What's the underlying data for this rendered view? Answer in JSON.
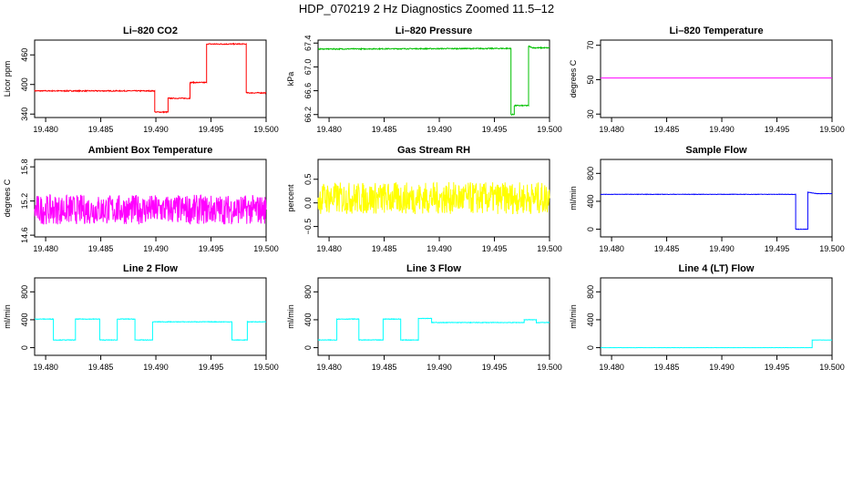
{
  "figure": {
    "title": "HDP_070219  2 Hz Diagnostics Zoomed 11.5–12"
  },
  "chart_data": [
    {
      "type": "line",
      "title": "Li–820 CO2",
      "ylabel": "Licor ppm",
      "xlim": [
        19.479,
        19.5
      ],
      "xticks": [
        19.48,
        19.485,
        19.49,
        19.495,
        19.5
      ],
      "xtick_labels": [
        "19.480",
        "19.485",
        "19.490",
        "19.495",
        "19.500"
      ],
      "ylim": [
        333,
        490
      ],
      "yticks": [
        340,
        400,
        460
      ],
      "ytick_labels": [
        "340",
        "400",
        "460"
      ],
      "color": "#ff0000",
      "noise": 1,
      "series": [
        {
          "x": [
            19.479,
            19.4899,
            19.4899,
            19.4911,
            19.4911,
            19.4931,
            19.4931,
            19.4946,
            19.4946,
            19.4982,
            19.4982,
            19.5
          ],
          "y": [
            387,
            387,
            344,
            344,
            372,
            372,
            404,
            404,
            482,
            482,
            383,
            383
          ]
        }
      ]
    },
    {
      "type": "line",
      "title": "Li–820 Pressure",
      "ylabel": "kPa",
      "xlim": [
        19.479,
        19.5
      ],
      "xticks": [
        19.48,
        19.485,
        19.49,
        19.495,
        19.5
      ],
      "xtick_labels": [
        "19.480",
        "19.485",
        "19.490",
        "19.495",
        "19.500"
      ],
      "ylim": [
        66.15,
        67.45
      ],
      "yticks": [
        66.2,
        66.6,
        67.0,
        67.4
      ],
      "ytick_labels": [
        "66.2",
        "66.6",
        "67.0",
        "67.4"
      ],
      "color": "#00c000",
      "noise": 0.008,
      "series": [
        {
          "x": [
            19.479,
            19.4965,
            19.4965,
            19.4968,
            19.4968,
            19.4981,
            19.4981,
            19.4985,
            19.5
          ],
          "y": [
            67.3,
            67.31,
            66.2,
            66.2,
            66.35,
            66.35,
            67.35,
            67.32,
            67.32
          ]
        }
      ]
    },
    {
      "type": "line",
      "title": "Li–820 Temperature",
      "ylabel": "degrees C",
      "xlim": [
        19.479,
        19.5
      ],
      "xticks": [
        19.48,
        19.485,
        19.49,
        19.495,
        19.5
      ],
      "xtick_labels": [
        "19.480",
        "19.485",
        "19.490",
        "19.495",
        "19.500"
      ],
      "ylim": [
        28,
        73
      ],
      "yticks": [
        30,
        50,
        70
      ],
      "ytick_labels": [
        "30",
        "50",
        "70"
      ],
      "color": "#ff00ff",
      "noise": 0,
      "series": [
        {
          "x": [
            19.479,
            19.5
          ],
          "y": [
            51,
            51
          ]
        }
      ]
    },
    {
      "type": "line",
      "title": "Ambient Box Temperature",
      "ylabel": "degrees C",
      "xlim": [
        19.479,
        19.5
      ],
      "xticks": [
        19.48,
        19.485,
        19.49,
        19.495,
        19.5
      ],
      "xtick_labels": [
        "19.480",
        "19.485",
        "19.490",
        "19.495",
        "19.500"
      ],
      "ylim": [
        14.57,
        15.93
      ],
      "yticks": [
        14.6,
        15.2,
        15.8
      ],
      "ytick_labels": [
        "14.6",
        "15.2",
        "15.8"
      ],
      "color": "#ff00ff",
      "noise": 0.26,
      "series": [
        {
          "x": [
            19.479,
            19.5
          ],
          "y": [
            15.05,
            15.05
          ]
        }
      ]
    },
    {
      "type": "line",
      "title": "Gas Stream RH",
      "ylabel": "percent",
      "xlim": [
        19.479,
        19.5
      ],
      "xticks": [
        19.48,
        19.485,
        19.49,
        19.495,
        19.5
      ],
      "xtick_labels": [
        "19.480",
        "19.485",
        "19.490",
        "19.495",
        "19.500"
      ],
      "ylim": [
        -0.72,
        0.92
      ],
      "yticks": [
        -0.5,
        0.0,
        0.5
      ],
      "ytick_labels": [
        "−0.5",
        "0.0",
        "0.5"
      ],
      "color": "#ffff00",
      "noise": 0.34,
      "series": [
        {
          "x": [
            19.479,
            19.5
          ],
          "y": [
            0.1,
            0.1
          ]
        }
      ]
    },
    {
      "type": "line",
      "title": "Sample Flow",
      "ylabel": "ml/min",
      "xlim": [
        19.479,
        19.5
      ],
      "xticks": [
        19.48,
        19.485,
        19.49,
        19.495,
        19.5
      ],
      "xtick_labels": [
        "19.480",
        "19.485",
        "19.490",
        "19.495",
        "19.500"
      ],
      "ylim": [
        -110,
        1000
      ],
      "yticks": [
        0,
        400,
        800
      ],
      "ytick_labels": [
        "0",
        "400",
        "800"
      ],
      "color": "#0000ff",
      "noise": 3,
      "series": [
        {
          "x": [
            19.479,
            19.4967,
            19.4967,
            19.4978,
            19.4978,
            19.4986,
            19.5
          ],
          "y": [
            500,
            500,
            0,
            0,
            530,
            510,
            510
          ]
        }
      ]
    },
    {
      "type": "line",
      "title": "Line 2 Flow",
      "ylabel": "ml/min",
      "xlim": [
        19.479,
        19.5
      ],
      "xticks": [
        19.48,
        19.485,
        19.49,
        19.495,
        19.5
      ],
      "xtick_labels": [
        "19.480",
        "19.485",
        "19.490",
        "19.495",
        "19.500"
      ],
      "ylim": [
        -110,
        1000
      ],
      "yticks": [
        0,
        400,
        800
      ],
      "ytick_labels": [
        "0",
        "400",
        "800"
      ],
      "color": "#00ffff",
      "noise": 4,
      "series": [
        {
          "x": [
            19.479,
            19.4807,
            19.4807,
            19.4827,
            19.4827,
            19.4849,
            19.4849,
            19.4865,
            19.4865,
            19.4881,
            19.4881,
            19.4897,
            19.4897,
            19.4969,
            19.4969,
            19.4983,
            19.4983,
            19.5
          ],
          "y": [
            410,
            410,
            110,
            110,
            410,
            410,
            110,
            110,
            410,
            410,
            110,
            110,
            370,
            370,
            110,
            110,
            370,
            370
          ]
        }
      ]
    },
    {
      "type": "line",
      "title": "Line 3 Flow",
      "ylabel": "ml/min",
      "xlim": [
        19.479,
        19.5
      ],
      "xticks": [
        19.48,
        19.485,
        19.49,
        19.495,
        19.5
      ],
      "xtick_labels": [
        "19.480",
        "19.485",
        "19.490",
        "19.495",
        "19.500"
      ],
      "ylim": [
        -110,
        1000
      ],
      "yticks": [
        0,
        400,
        800
      ],
      "ytick_labels": [
        "0",
        "400",
        "800"
      ],
      "color": "#00ffff",
      "noise": 4,
      "series": [
        {
          "x": [
            19.479,
            19.4807,
            19.4807,
            19.4827,
            19.4827,
            19.4849,
            19.4849,
            19.4865,
            19.4865,
            19.4881,
            19.4881,
            19.4893,
            19.4893,
            19.4977,
            19.4977,
            19.4988,
            19.4988,
            19.5
          ],
          "y": [
            110,
            110,
            410,
            410,
            110,
            110,
            410,
            410,
            110,
            110,
            420,
            420,
            360,
            360,
            400,
            400,
            360,
            360
          ]
        }
      ]
    },
    {
      "type": "line",
      "title": "Line 4 (LT) Flow",
      "ylabel": "ml/min",
      "xlim": [
        19.479,
        19.5
      ],
      "xticks": [
        19.48,
        19.485,
        19.49,
        19.495,
        19.5
      ],
      "xtick_labels": [
        "19.480",
        "19.485",
        "19.490",
        "19.495",
        "19.500"
      ],
      "ylim": [
        -110,
        1000
      ],
      "yticks": [
        0,
        400,
        800
      ],
      "ytick_labels": [
        "0",
        "400",
        "800"
      ],
      "color": "#00ffff",
      "noise": 1,
      "series": [
        {
          "x": [
            19.479,
            19.4982,
            19.4982,
            19.5
          ],
          "y": [
            0,
            0,
            110,
            110
          ]
        }
      ]
    }
  ]
}
